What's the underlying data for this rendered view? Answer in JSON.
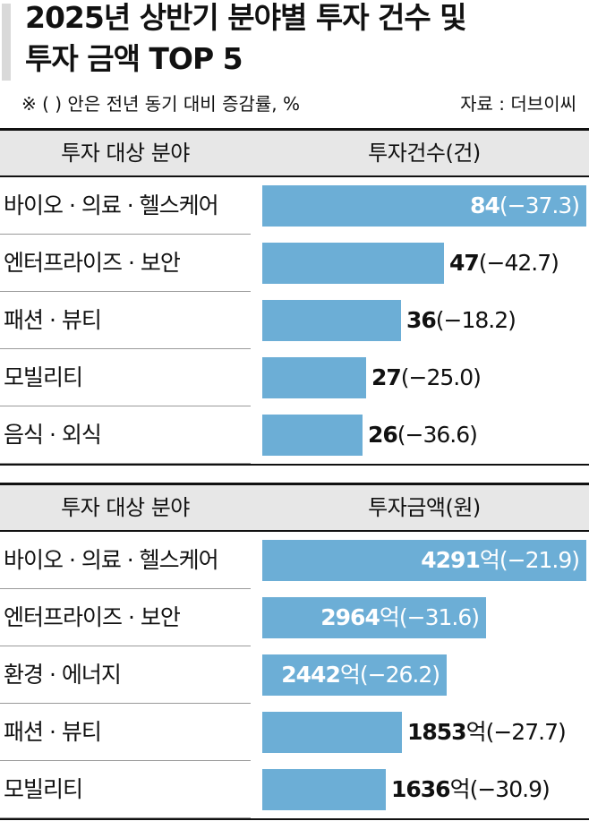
{
  "title_line1": "2025년 상반기 분야별 투자 건수 및",
  "title_line2": "투자 금액 TOP 5",
  "note": "※ (   ) 안은 전년 동기 대비 증감률, %",
  "source": "자료 : 더브이씨",
  "colors": {
    "bar": "#6caed6",
    "header_bg": "#e7e7e7"
  },
  "chart_data": [
    {
      "type": "bar",
      "orientation": "horizontal",
      "column_header_category": "투자 대상 분야",
      "column_header_value": "투자건수(건)",
      "categories": [
        "바이오 · 의료 · 헬스케어",
        "엔터프라이즈 · 보안",
        "패션 · 뷰티",
        "모빌리티",
        "음식 · 외식"
      ],
      "values": [
        84,
        47,
        36,
        27,
        26
      ],
      "value_labels": [
        "84",
        "47",
        "36",
        "27",
        "26"
      ],
      "unit": "",
      "change_labels": [
        "(−37.3)",
        "(−42.7)",
        "(−18.2)",
        "(−25.0)",
        "(−36.6)"
      ],
      "changes_pct": [
        -37.3,
        -42.7,
        -18.2,
        -25.0,
        -36.6
      ],
      "max_value": 84
    },
    {
      "type": "bar",
      "orientation": "horizontal",
      "column_header_category": "투자 대상 분야",
      "column_header_value": "투자금액(원)",
      "categories": [
        "바이오 · 의료 · 헬스케어",
        "엔터프라이즈 · 보안",
        "환경 · 에너지",
        "패션 · 뷰티",
        "모빌리티"
      ],
      "values": [
        4291,
        2964,
        2442,
        1853,
        1636
      ],
      "value_labels": [
        "4291",
        "2964",
        "2442",
        "1853",
        "1636"
      ],
      "unit": "억",
      "change_labels": [
        "(−21.9)",
        "(−31.6)",
        "(−26.2)",
        "(−27.7)",
        "(−30.9)"
      ],
      "changes_pct": [
        -21.9,
        -31.6,
        -26.2,
        -27.7,
        -30.9
      ],
      "max_value": 4291
    }
  ]
}
